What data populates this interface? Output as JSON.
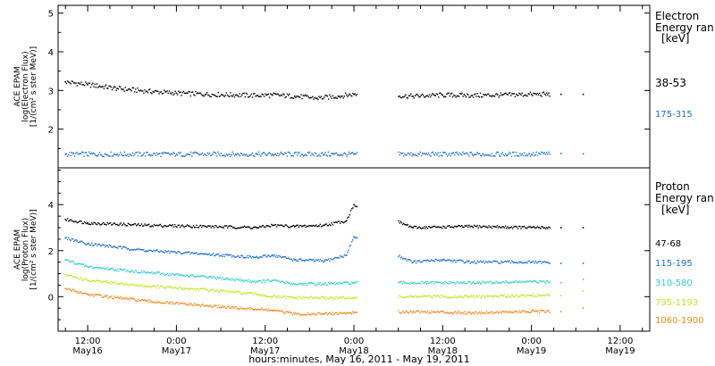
{
  "figure": {
    "xlabel": "hours:minutes, May 16, 2011 - May 19, 2011",
    "x_ticks": [
      {
        "hour": 12,
        "label": "12:00",
        "date": "May16"
      },
      {
        "hour": 24,
        "label": "0:00",
        "date": "May17"
      },
      {
        "hour": 36,
        "label": "12:00",
        "date": "May17"
      },
      {
        "hour": 48,
        "label": "0:00",
        "date": "May18"
      },
      {
        "hour": 60,
        "label": "12:00",
        "date": "May18"
      },
      {
        "hour": 72,
        "label": "0:00",
        "date": "May19"
      },
      {
        "hour": 84,
        "label": "12:00",
        "date": "May19"
      }
    ]
  },
  "chart_data": [
    {
      "type": "scatter",
      "panel": "electron",
      "ylabel_lines": [
        "ACE EPAM",
        "log(Electron Flux)",
        "[1/(cm² s ster MeV)]"
      ],
      "legend_title": [
        "Electron",
        "Energy ran"
      ],
      "legend_unit": "[keV]",
      "ylim": [
        1.0,
        5.2
      ],
      "y_ticks": [
        2,
        3,
        4,
        5
      ],
      "xlim_hours": [
        8,
        88
      ],
      "data_gaps_hours": [
        [
          48.5,
          54
        ],
        [
          74.5,
          80
        ],
        [
          83.5,
          88
        ]
      ],
      "series": [
        {
          "name": "38-53",
          "color": "#000000",
          "points": [
            [
              9,
              3.22
            ],
            [
              12,
              3.15
            ],
            [
              16,
              3.05
            ],
            [
              20,
              2.98
            ],
            [
              24,
              2.93
            ],
            [
              28,
              2.9
            ],
            [
              32,
              2.88
            ],
            [
              35,
              2.87
            ],
            [
              37,
              2.88
            ],
            [
              40,
              2.85
            ],
            [
              43,
              2.8
            ],
            [
              46,
              2.85
            ],
            [
              48,
              2.9
            ],
            [
              56,
              2.85
            ],
            [
              60,
              2.88
            ],
            [
              64,
              2.87
            ],
            [
              68,
              2.88
            ],
            [
              72,
              2.9
            ],
            [
              76,
              2.9
            ],
            [
              79,
              2.9
            ]
          ]
        },
        {
          "name": "175-315",
          "color": "#1f6fd1",
          "points": [
            [
              9,
              1.35
            ],
            [
              16,
              1.35
            ],
            [
              24,
              1.35
            ],
            [
              32,
              1.35
            ],
            [
              35,
              1.35
            ],
            [
              37,
              1.35
            ],
            [
              44,
              1.35
            ],
            [
              48,
              1.35
            ],
            [
              56,
              1.35
            ],
            [
              64,
              1.35
            ],
            [
              72,
              1.35
            ],
            [
              76,
              1.37
            ],
            [
              79,
              1.36
            ]
          ]
        }
      ]
    },
    {
      "type": "scatter",
      "panel": "proton",
      "ylabel_lines": [
        "ACE EPAM",
        "log(Proton Flux)",
        "[1/(cm² s ster MeV)]"
      ],
      "legend_title": [
        "Proton",
        "Energy ran"
      ],
      "legend_unit": "[keV]",
      "ylim": [
        -1.5,
        5.6
      ],
      "y_ticks": [
        0,
        2,
        4
      ],
      "xlim_hours": [
        8,
        88
      ],
      "data_gaps_hours": [
        [
          48.5,
          54
        ],
        [
          74.5,
          80
        ],
        [
          83.5,
          88
        ]
      ],
      "series": [
        {
          "name": "47-68",
          "color": "#000000",
          "points": [
            [
              9,
              3.35
            ],
            [
              12,
              3.2
            ],
            [
              20,
              3.1
            ],
            [
              28,
              3.05
            ],
            [
              35,
              3.0
            ],
            [
              37,
              3.1
            ],
            [
              40,
              3.05
            ],
            [
              44,
              3.1
            ],
            [
              47,
              3.3
            ],
            [
              48,
              4.0
            ],
            [
              56,
              3.0
            ],
            [
              64,
              3.05
            ],
            [
              72,
              3.0
            ],
            [
              76,
              3.0
            ],
            [
              79,
              3.0
            ]
          ]
        },
        {
          "name": "115-195",
          "color": "#1f6fd1",
          "points": [
            [
              9,
              2.55
            ],
            [
              12,
              2.3
            ],
            [
              20,
              2.0
            ],
            [
              28,
              1.85
            ],
            [
              35,
              1.7
            ],
            [
              37,
              1.8
            ],
            [
              40,
              1.6
            ],
            [
              44,
              1.55
            ],
            [
              47,
              1.8
            ],
            [
              48,
              2.6
            ],
            [
              56,
              1.5
            ],
            [
              60,
              1.6
            ],
            [
              64,
              1.5
            ],
            [
              72,
              1.5
            ],
            [
              76,
              1.45
            ],
            [
              79,
              1.45
            ]
          ]
        },
        {
          "name": "310-580",
          "color": "#2ed3c4",
          "points": [
            [
              9,
              1.6
            ],
            [
              12,
              1.3
            ],
            [
              20,
              1.05
            ],
            [
              28,
              0.85
            ],
            [
              35,
              0.65
            ],
            [
              37,
              0.7
            ],
            [
              40,
              0.55
            ],
            [
              44,
              0.55
            ],
            [
              48,
              0.6
            ],
            [
              56,
              0.6
            ],
            [
              64,
              0.6
            ],
            [
              72,
              0.65
            ],
            [
              76,
              0.6
            ],
            [
              79,
              0.75
            ]
          ]
        },
        {
          "name": "795-1193",
          "color": "#c3e62a",
          "points": [
            [
              9,
              0.95
            ],
            [
              12,
              0.7
            ],
            [
              20,
              0.45
            ],
            [
              28,
              0.3
            ],
            [
              35,
              0.1
            ],
            [
              37,
              0.0
            ],
            [
              40,
              -0.05
            ],
            [
              44,
              -0.05
            ],
            [
              48,
              -0.05
            ],
            [
              56,
              0.0
            ],
            [
              64,
              0.0
            ],
            [
              72,
              0.05
            ],
            [
              76,
              0.05
            ],
            [
              79,
              0.25
            ]
          ]
        },
        {
          "name": "1060-1900",
          "color": "#f08a1c",
          "points": [
            [
              9,
              0.35
            ],
            [
              12,
              0.1
            ],
            [
              20,
              -0.2
            ],
            [
              28,
              -0.4
            ],
            [
              35,
              -0.55
            ],
            [
              37,
              -0.6
            ],
            [
              40,
              -0.75
            ],
            [
              44,
              -0.75
            ],
            [
              48,
              -0.7
            ],
            [
              56,
              -0.65
            ],
            [
              64,
              -0.7
            ],
            [
              72,
              -0.65
            ],
            [
              76,
              -0.65
            ],
            [
              79,
              -0.5
            ]
          ]
        }
      ]
    }
  ]
}
